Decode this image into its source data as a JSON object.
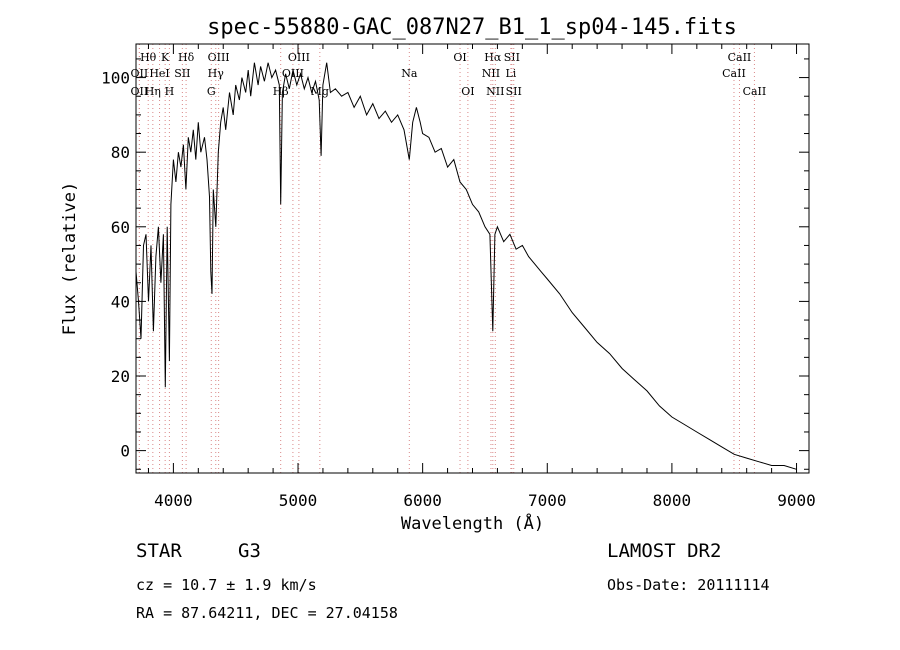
{
  "chart_data": {
    "type": "line",
    "title": "spec-55880-GAC_087N27_B1_1_sp04-145.fits",
    "xlabel": "Wavelength (Å)",
    "ylabel": "Flux (relative)",
    "xlim": [
      3700,
      9100
    ],
    "ylim": [
      -6,
      109
    ],
    "x_ticks": [
      4000,
      5000,
      6000,
      7000,
      8000,
      9000
    ],
    "y_ticks": [
      0,
      20,
      40,
      60,
      80,
      100
    ],
    "grid": false,
    "series": [
      {
        "color": "#000000",
        "points": [
          [
            3700,
            48
          ],
          [
            3720,
            40
          ],
          [
            3740,
            30
          ],
          [
            3760,
            55
          ],
          [
            3780,
            58
          ],
          [
            3800,
            40
          ],
          [
            3820,
            55
          ],
          [
            3840,
            32
          ],
          [
            3860,
            52
          ],
          [
            3880,
            60
          ],
          [
            3900,
            45
          ],
          [
            3920,
            58
          ],
          [
            3935,
            17
          ],
          [
            3950,
            60
          ],
          [
            3968,
            24
          ],
          [
            3980,
            66
          ],
          [
            4000,
            78
          ],
          [
            4020,
            72
          ],
          [
            4040,
            80
          ],
          [
            4060,
            76
          ],
          [
            4080,
            82
          ],
          [
            4100,
            70
          ],
          [
            4120,
            84
          ],
          [
            4140,
            80
          ],
          [
            4160,
            86
          ],
          [
            4180,
            78
          ],
          [
            4200,
            88
          ],
          [
            4220,
            80
          ],
          [
            4250,
            84
          ],
          [
            4270,
            78
          ],
          [
            4290,
            68
          ],
          [
            4300,
            48
          ],
          [
            4310,
            42
          ],
          [
            4320,
            70
          ],
          [
            4340,
            60
          ],
          [
            4360,
            80
          ],
          [
            4380,
            88
          ],
          [
            4400,
            92
          ],
          [
            4420,
            86
          ],
          [
            4450,
            96
          ],
          [
            4480,
            90
          ],
          [
            4500,
            98
          ],
          [
            4530,
            94
          ],
          [
            4550,
            100
          ],
          [
            4580,
            96
          ],
          [
            4600,
            102
          ],
          [
            4620,
            95
          ],
          [
            4650,
            104
          ],
          [
            4680,
            98
          ],
          [
            4700,
            103
          ],
          [
            4730,
            99
          ],
          [
            4760,
            104
          ],
          [
            4790,
            100
          ],
          [
            4820,
            102
          ],
          [
            4850,
            98
          ],
          [
            4861,
            66
          ],
          [
            4875,
            96
          ],
          [
            4900,
            101
          ],
          [
            4930,
            97
          ],
          [
            4960,
            102
          ],
          [
            4990,
            98
          ],
          [
            5020,
            101
          ],
          [
            5050,
            97
          ],
          [
            5080,
            100
          ],
          [
            5110,
            96
          ],
          [
            5140,
            99
          ],
          [
            5170,
            94
          ],
          [
            5185,
            79
          ],
          [
            5200,
            98
          ],
          [
            5230,
            104
          ],
          [
            5260,
            96
          ],
          [
            5300,
            97
          ],
          [
            5350,
            95
          ],
          [
            5400,
            96
          ],
          [
            5450,
            92
          ],
          [
            5500,
            95
          ],
          [
            5550,
            90
          ],
          [
            5600,
            93
          ],
          [
            5650,
            89
          ],
          [
            5700,
            91
          ],
          [
            5750,
            88
          ],
          [
            5800,
            90
          ],
          [
            5850,
            86
          ],
          [
            5893,
            78
          ],
          [
            5920,
            88
          ],
          [
            5950,
            92
          ],
          [
            5980,
            88
          ],
          [
            6000,
            85
          ],
          [
            6050,
            84
          ],
          [
            6100,
            80
          ],
          [
            6150,
            81
          ],
          [
            6200,
            76
          ],
          [
            6250,
            78
          ],
          [
            6300,
            72
          ],
          [
            6350,
            70
          ],
          [
            6400,
            66
          ],
          [
            6450,
            64
          ],
          [
            6500,
            60
          ],
          [
            6540,
            58
          ],
          [
            6563,
            32
          ],
          [
            6580,
            58
          ],
          [
            6600,
            60
          ],
          [
            6650,
            56
          ],
          [
            6700,
            58
          ],
          [
            6750,
            54
          ],
          [
            6800,
            55
          ],
          [
            6850,
            52
          ],
          [
            6900,
            50
          ],
          [
            6950,
            48
          ],
          [
            7000,
            46
          ],
          [
            7100,
            42
          ],
          [
            7200,
            37
          ],
          [
            7300,
            33
          ],
          [
            7400,
            29
          ],
          [
            7500,
            26
          ],
          [
            7600,
            22
          ],
          [
            7700,
            19
          ],
          [
            7800,
            16
          ],
          [
            7900,
            12
          ],
          [
            8000,
            9
          ],
          [
            8100,
            7
          ],
          [
            8200,
            5
          ],
          [
            8300,
            3
          ],
          [
            8400,
            1
          ],
          [
            8500,
            -1
          ],
          [
            8600,
            -2
          ],
          [
            8700,
            -3
          ],
          [
            8800,
            -4
          ],
          [
            8900,
            -4
          ],
          [
            9000,
            -5
          ]
        ]
      }
    ],
    "spectral_lines": [
      {
        "label": "Hθ",
        "x": 3798,
        "row": 1,
        "color": "#d98888"
      },
      {
        "label": "K",
        "x": 3934,
        "row": 1,
        "color": "#d98888"
      },
      {
        "label": "Hδ",
        "x": 4102,
        "row": 1,
        "color": "#d98888"
      },
      {
        "label": "OII",
        "x": 3727,
        "row": 2,
        "color": "#d98888"
      },
      {
        "label": "HeI",
        "x": 3889,
        "row": 2,
        "color": "#d98888"
      },
      {
        "label": "SII",
        "x": 4072,
        "row": 2,
        "color": "#d98888"
      },
      {
        "label": "OII",
        "x": 3727,
        "row": 3,
        "color": "#d98888"
      },
      {
        "label": "Hη",
        "x": 3835,
        "row": 3,
        "color": "#d98888"
      },
      {
        "label": "H",
        "x": 3968,
        "row": 3,
        "color": "#d98888"
      },
      {
        "label": "OIII",
        "x": 4363,
        "row": 1,
        "color": "#d98888"
      },
      {
        "label": "Hγ",
        "x": 4340,
        "row": 2,
        "color": "#d98888"
      },
      {
        "label": "G",
        "x": 4304,
        "row": 3,
        "color": "#d98888"
      },
      {
        "label": "OIII",
        "x": 5007,
        "row": 1,
        "color": "#d98888"
      },
      {
        "label": "OIII",
        "x": 4959,
        "row": 2,
        "color": "#d98888"
      },
      {
        "label": "Hβ",
        "x": 4861,
        "row": 3,
        "color": "#d98888"
      },
      {
        "label": "Mg",
        "x": 5175,
        "row": 3,
        "color": "#d98888"
      },
      {
        "label": "Na",
        "x": 5893,
        "row": 2,
        "color": "#d98888"
      },
      {
        "label": "OI",
        "x": 6300,
        "row": 1,
        "color": "#d98888"
      },
      {
        "label": "OI",
        "x": 6363,
        "row": 3,
        "color": "#d98888"
      },
      {
        "label": "Hα",
        "x": 6563,
        "row": 1,
        "color": "#d98888"
      },
      {
        "label": "SII",
        "x": 6716,
        "row": 1,
        "color": "#d98888"
      },
      {
        "label": "NII",
        "x": 6548,
        "row": 2,
        "color": "#d98888"
      },
      {
        "label": "Li",
        "x": 6708,
        "row": 2,
        "color": "#d98888"
      },
      {
        "label": "NII",
        "x": 6583,
        "row": 3,
        "color": "#d98888"
      },
      {
        "label": "SII",
        "x": 6731,
        "row": 3,
        "color": "#d98888"
      },
      {
        "label": "CaII",
        "x": 8542,
        "row": 1,
        "color": "#d98888"
      },
      {
        "label": "CaII",
        "x": 8498,
        "row": 2,
        "color": "#d98888"
      },
      {
        "label": "CaII",
        "x": 8662,
        "row": 3,
        "color": "#d98888"
      }
    ]
  },
  "info": {
    "class": "STAR",
    "subclass": "G3",
    "survey": "LAMOST DR2",
    "cz": "cz = 10.7 ± 1.9 km/s",
    "obs_date": "Obs-Date: 20111114",
    "coords": "RA =  87.64211, DEC =  27.04158"
  }
}
